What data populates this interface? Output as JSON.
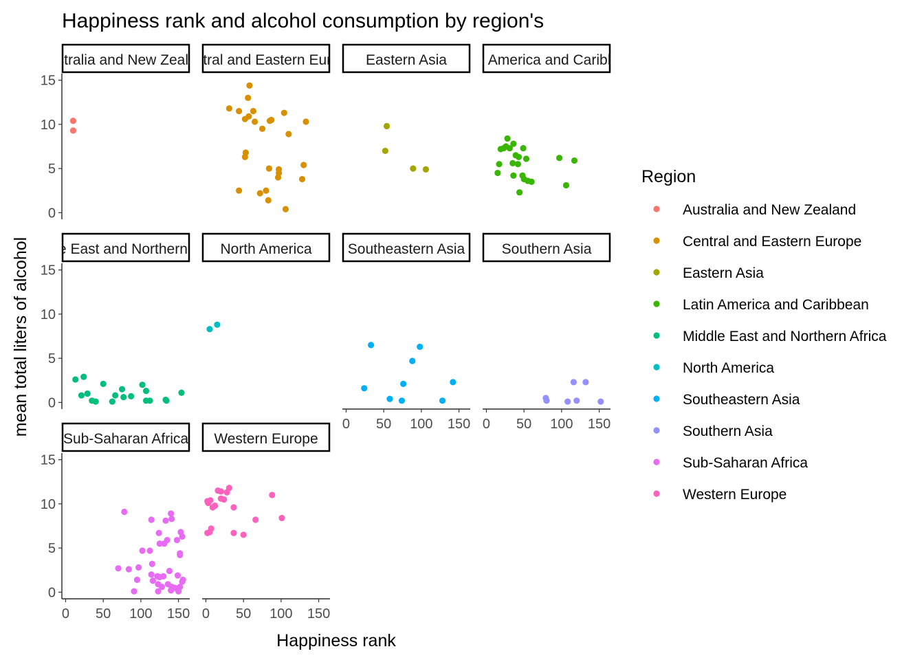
{
  "chart_data": {
    "type": "scatter",
    "title": "Happiness rank and alcohol consumption by region's",
    "xlabel": "Happiness rank",
    "ylabel": "mean total liters of alcohol",
    "xlim": [
      -5,
      165
    ],
    "ylim": [
      -0.75,
      15.75
    ],
    "x_ticks": [
      0,
      50,
      100,
      150
    ],
    "y_ticks": [
      0,
      5,
      10,
      15
    ],
    "grid": false,
    "legend_title": "Region",
    "legend_position": "right",
    "series": [
      {
        "name": "Australia and New Zealand",
        "strip_label": "Australia and New Zealand",
        "color": "#F8766D",
        "points": [
          [
            10,
            10.4
          ],
          [
            10,
            9.3
          ]
        ]
      },
      {
        "name": "Central and Eastern Europe",
        "strip_label": "Central and Eastern Europe",
        "color": "#D89000",
        "points": [
          [
            31,
            11.8
          ],
          [
            44,
            11.5
          ],
          [
            56,
            13.0
          ],
          [
            58,
            14.4
          ],
          [
            52,
            10.6
          ],
          [
            57,
            10.9
          ],
          [
            63,
            11.5
          ],
          [
            65,
            10.3
          ],
          [
            75,
            9.5
          ],
          [
            85,
            10.4
          ],
          [
            87,
            10.5
          ],
          [
            104,
            11.3
          ],
          [
            110,
            8.9
          ],
          [
            133,
            10.3
          ],
          [
            53,
            6.8
          ],
          [
            52,
            6.3
          ],
          [
            84,
            5.0
          ],
          [
            97,
            4.9
          ],
          [
            97,
            4.5
          ],
          [
            96,
            4.0
          ],
          [
            130,
            5.4
          ],
          [
            128,
            3.8
          ],
          [
            44,
            2.5
          ],
          [
            72,
            2.2
          ],
          [
            80,
            2.5
          ],
          [
            83,
            1.4
          ],
          [
            106,
            0.4
          ]
        ]
      },
      {
        "name": "Eastern Asia",
        "strip_label": "Eastern Asia",
        "color": "#A3A500",
        "points": [
          [
            54,
            9.8
          ],
          [
            52,
            7.0
          ],
          [
            89,
            5.0
          ],
          [
            106,
            4.9
          ]
        ]
      },
      {
        "name": "Latin America and Caribbean",
        "strip_label": "Latin America and Caribbean",
        "color": "#39B600",
        "points": [
          [
            19,
            7.2
          ],
          [
            23,
            7.3
          ],
          [
            26,
            7.5
          ],
          [
            28,
            8.4
          ],
          [
            31,
            7.3
          ],
          [
            36,
            7.8
          ],
          [
            39,
            6.5
          ],
          [
            49,
            7.3
          ],
          [
            53,
            6.1
          ],
          [
            17,
            5.5
          ],
          [
            35,
            5.6
          ],
          [
            43,
            6.3
          ],
          [
            42,
            5.5
          ],
          [
            15,
            4.5
          ],
          [
            36,
            4.2
          ],
          [
            48,
            4.2
          ],
          [
            50,
            3.8
          ],
          [
            55,
            3.6
          ],
          [
            60,
            3.5
          ],
          [
            97,
            6.2
          ],
          [
            117,
            5.9
          ],
          [
            106,
            3.1
          ],
          [
            44,
            2.3
          ]
        ]
      },
      {
        "name": "Middle East and Northern Africa",
        "strip_label": "Middle East and Northern Africa",
        "color": "#00BF7D",
        "points": [
          [
            13,
            2.6
          ],
          [
            24,
            2.9
          ],
          [
            21,
            0.8
          ],
          [
            29,
            1.0
          ],
          [
            35,
            0.2
          ],
          [
            40,
            0.1
          ],
          [
            50,
            2.1
          ],
          [
            62,
            0.1
          ],
          [
            66,
            0.8
          ],
          [
            75,
            1.5
          ],
          [
            77,
            0.6
          ],
          [
            87,
            0.7
          ],
          [
            102,
            2.0
          ],
          [
            107,
            1.3
          ],
          [
            107,
            0.2
          ],
          [
            112,
            0.2
          ],
          [
            133,
            0.3
          ],
          [
            134,
            0.2
          ],
          [
            154,
            1.1
          ]
        ]
      },
      {
        "name": "North America",
        "strip_label": "North America",
        "color": "#00BFC4",
        "points": [
          [
            5,
            8.3
          ],
          [
            15,
            8.8
          ]
        ]
      },
      {
        "name": "Southeastern Asia",
        "strip_label": "Southeastern Asia",
        "color": "#00B0F6",
        "points": [
          [
            33,
            6.5
          ],
          [
            98,
            6.3
          ],
          [
            88,
            4.7
          ],
          [
            24,
            1.6
          ],
          [
            76,
            2.1
          ],
          [
            58,
            0.4
          ],
          [
            74,
            0.2
          ],
          [
            128,
            0.2
          ],
          [
            142,
            2.3
          ]
        ]
      },
      {
        "name": "Southern Asia",
        "strip_label": "Southern Asia",
        "color": "#9590FF",
        "points": [
          [
            79,
            0.5
          ],
          [
            80,
            0.2
          ],
          [
            108,
            0.1
          ],
          [
            116,
            2.3
          ],
          [
            120,
            0.2
          ],
          [
            132,
            2.3
          ],
          [
            152,
            0.1
          ]
        ]
      },
      {
        "name": "Sub-Saharan Africa",
        "strip_label": "Sub-Saharan Africa",
        "color": "#E76BF3",
        "points": [
          [
            78,
            9.1
          ],
          [
            114,
            8.2
          ],
          [
            124,
            6.7
          ],
          [
            133,
            8.1
          ],
          [
            140,
            8.9
          ],
          [
            141,
            8.3
          ],
          [
            153,
            6.8
          ],
          [
            155,
            6.3
          ],
          [
            135,
            5.9
          ],
          [
            131,
            5.5
          ],
          [
            125,
            5.5
          ],
          [
            148,
            5.9
          ],
          [
            152,
            4.2
          ],
          [
            152,
            4.4
          ],
          [
            102,
            4.7
          ],
          [
            112,
            4.7
          ],
          [
            70,
            2.7
          ],
          [
            84,
            2.6
          ],
          [
            97,
            2.8
          ],
          [
            115,
            3.2
          ],
          [
            114,
            2.0
          ],
          [
            122,
            1.8
          ],
          [
            125,
            1.7
          ],
          [
            130,
            1.8
          ],
          [
            138,
            2.4
          ],
          [
            149,
            1.9
          ],
          [
            156,
            1.4
          ],
          [
            155,
            1.2
          ],
          [
            95,
            1.4
          ],
          [
            116,
            1.3
          ],
          [
            123,
            0.9
          ],
          [
            128,
            0.6
          ],
          [
            136,
            0.9
          ],
          [
            141,
            0.6
          ],
          [
            145,
            0.5
          ],
          [
            148,
            0.4
          ],
          [
            152,
            0.6
          ],
          [
            123,
            0.1
          ],
          [
            140,
            0.2
          ],
          [
            150,
            0.1
          ],
          [
            91,
            0.1
          ]
        ]
      },
      {
        "name": "Western Europe",
        "strip_label": "Western Europe",
        "color": "#FF62BC",
        "points": [
          [
            2,
            10.3
          ],
          [
            3,
            10.1
          ],
          [
            6,
            10.4
          ],
          [
            9,
            9.6
          ],
          [
            12,
            9.8
          ],
          [
            16,
            11.5
          ],
          [
            20,
            11.4
          ],
          [
            20,
            10.6
          ],
          [
            24,
            10.5
          ],
          [
            28,
            11.3
          ],
          [
            31,
            11.8
          ],
          [
            37,
            9.6
          ],
          [
            7,
            7.2
          ],
          [
            5,
            6.8
          ],
          [
            2,
            6.7
          ],
          [
            37,
            6.7
          ],
          [
            50,
            6.5
          ],
          [
            66,
            8.2
          ],
          [
            88,
            11.0
          ],
          [
            101,
            8.4
          ]
        ]
      }
    ]
  }
}
